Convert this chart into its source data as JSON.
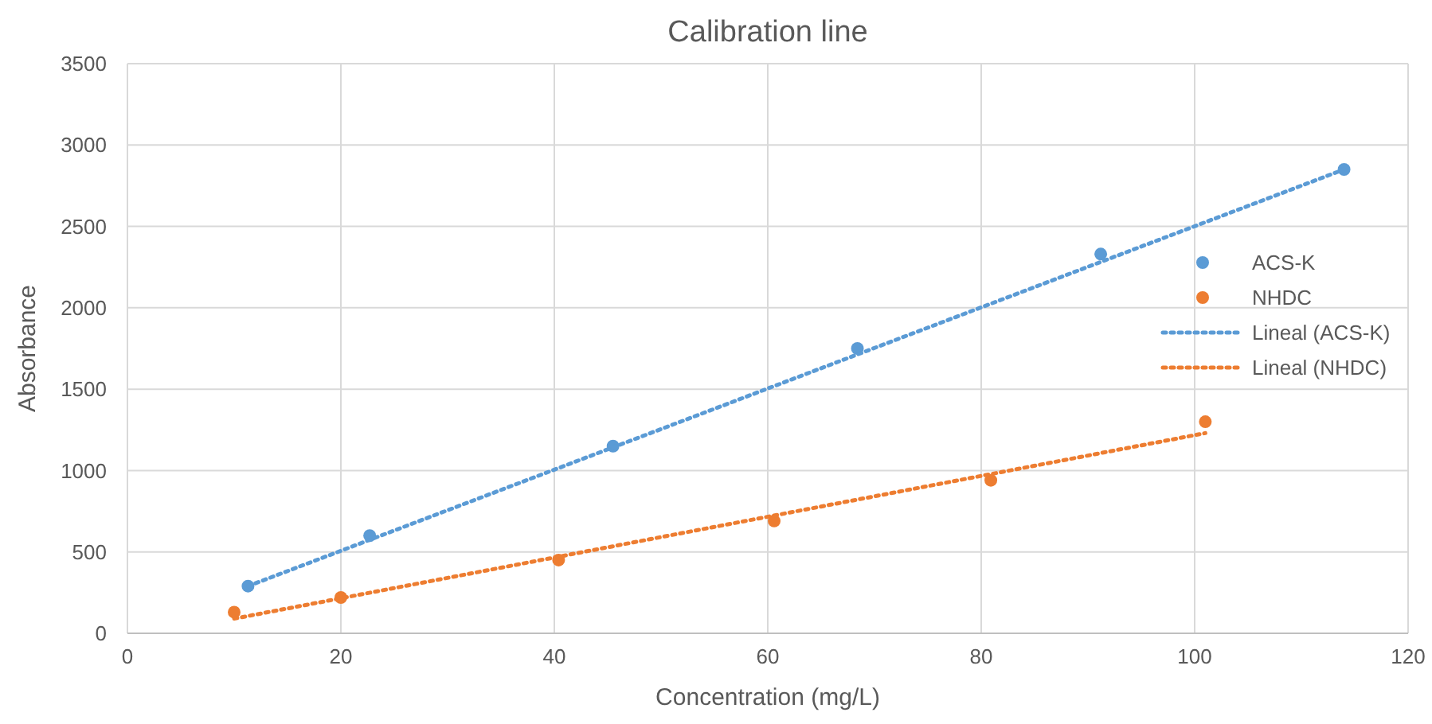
{
  "chart_data": {
    "type": "scatter",
    "title": "Calibration line",
    "xlabel": "Concentration (mg/L)",
    "ylabel": "Absorbance",
    "xlim": [
      0,
      120
    ],
    "xticks": [
      0,
      20,
      40,
      60,
      80,
      100,
      120
    ],
    "ylim": [
      0,
      3500
    ],
    "yticks": [
      0,
      500,
      1000,
      1500,
      2000,
      2500,
      3000,
      3500
    ],
    "grid": true,
    "legend": "right",
    "marker": "circle",
    "series": [
      {
        "name": "ACS-K",
        "color": "#5b9bd5",
        "x": [
          11.3,
          22.7,
          45.5,
          68.4,
          91.2,
          114
        ],
        "values": [
          290,
          600,
          1150,
          1750,
          2330,
          2850
        ]
      },
      {
        "name": "NHDC",
        "color": "#ed7d31",
        "x": [
          10,
          20,
          40.4,
          60.6,
          80.9,
          101
        ],
        "values": [
          130,
          220,
          450,
          690,
          940,
          1300
        ]
      },
      {
        "name": "Lineal (ACS-K)",
        "type": "line",
        "color": "#5b9bd5",
        "marker": "none",
        "line_style": "dotted",
        "x": [
          11.3,
          114
        ],
        "values": [
          290,
          2850
        ]
      },
      {
        "name": "Lineal (NHDC)",
        "type": "line",
        "color": "#ed7d31",
        "marker": "none",
        "line_style": "dotted",
        "x": [
          10,
          101
        ],
        "values": [
          90,
          1230
        ]
      }
    ]
  }
}
